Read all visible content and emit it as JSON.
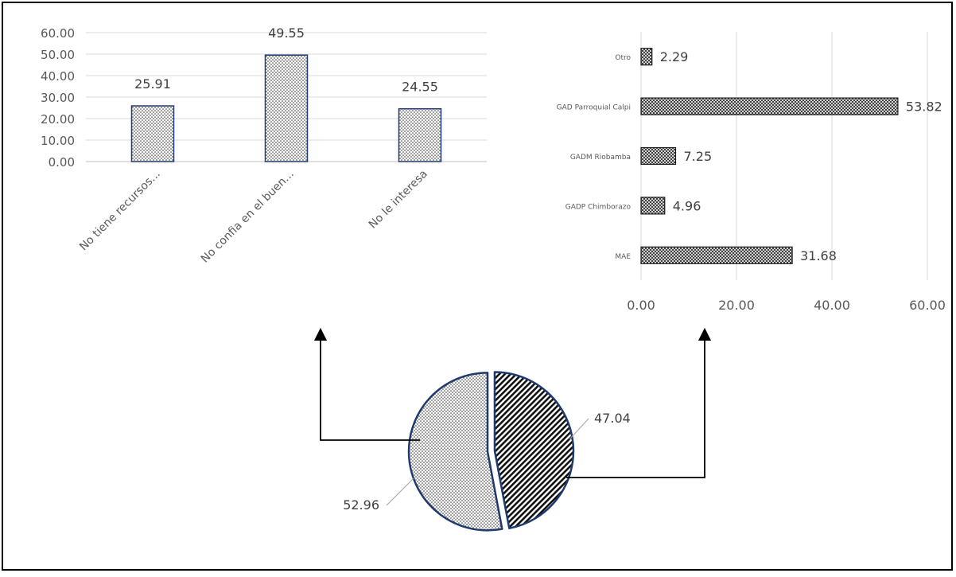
{
  "chart_data": [
    {
      "type": "bar",
      "title": "",
      "xlabel": "",
      "ylabel": "",
      "categories": [
        "No tiene recursos...",
        "No confia en el buen...",
        "No le interesa"
      ],
      "values": [
        25.91,
        49.55,
        24.55
      ],
      "value_labels": [
        "25.91",
        "49.55",
        "24.55"
      ],
      "ylim": [
        0,
        60
      ],
      "y_ticks": [
        "0.00",
        "10.00",
        "20.00",
        "30.00",
        "40.00",
        "50.00",
        "60.00"
      ],
      "grid": true,
      "legend": "none"
    },
    {
      "type": "bar",
      "orientation": "horizontal",
      "title": "",
      "xlabel": "",
      "ylabel": "",
      "categories": [
        "Otro",
        "GAD Parroquial Calpi",
        "GADM Riobamba",
        "GADP Chimborazo",
        "MAE"
      ],
      "values": [
        2.29,
        53.82,
        7.25,
        4.96,
        31.68
      ],
      "value_labels": [
        "2.29",
        "53.82",
        "7.25",
        "4.96",
        "31.68"
      ],
      "xlim": [
        0,
        60
      ],
      "x_ticks": [
        "0.00",
        "20.00",
        "40.00",
        "60.00"
      ],
      "grid": true,
      "legend": "none"
    },
    {
      "type": "pie",
      "title": "",
      "values": [
        47.04,
        52.96
      ],
      "value_labels": [
        "47.04",
        "52.96"
      ],
      "legend": "none"
    }
  ],
  "colors": {
    "outline": "#1f3a6e",
    "axis_text": "#595959",
    "grid": "#d9d9d9",
    "arrow": "#000000"
  }
}
